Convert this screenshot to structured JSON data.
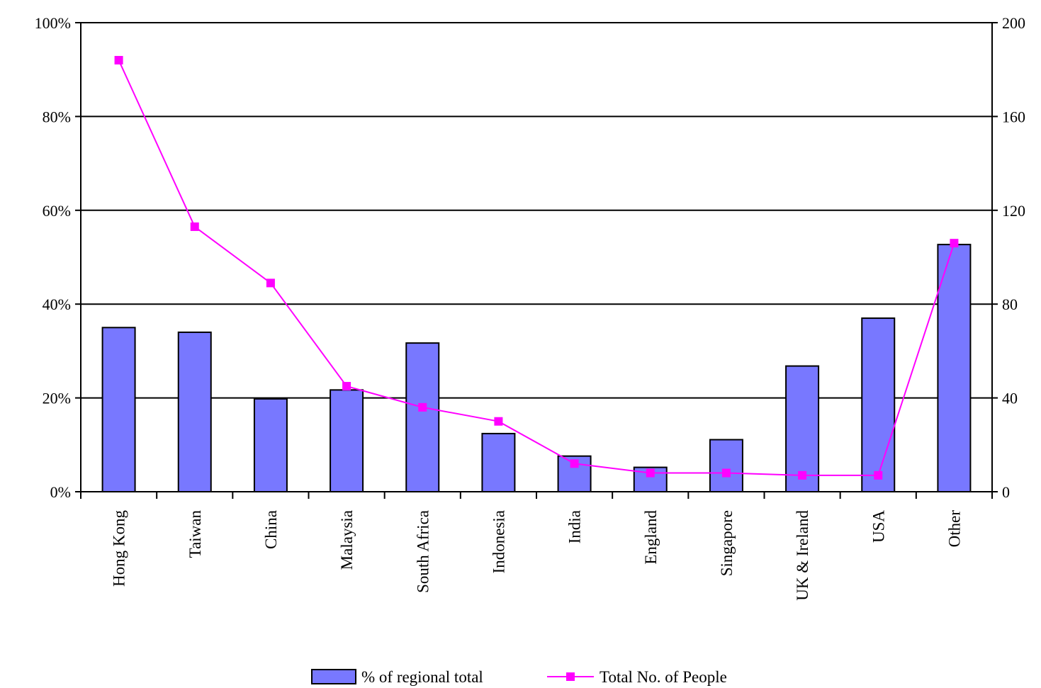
{
  "chart_data": {
    "type": "bar",
    "categories": [
      "Hong Kong",
      "Taiwan",
      "China",
      "Malaysia",
      "South Africa",
      "Indonesia",
      "India",
      "England",
      "Singapore",
      "UK & Ireland",
      "USA",
      "Other"
    ],
    "series": [
      {
        "name": "% of regional total",
        "type": "bar",
        "axis": "left",
        "color": "#7878ff",
        "values": [
          0.35,
          0.34,
          0.198,
          0.217,
          0.317,
          0.124,
          0.076,
          0.052,
          0.111,
          0.268,
          0.37,
          0.527
        ]
      },
      {
        "name": "Total No. of People",
        "type": "line",
        "axis": "right",
        "color": "#ff00ff",
        "marker": "square",
        "values": [
          184,
          113,
          89,
          45,
          36,
          30,
          12,
          8,
          8,
          7,
          7,
          106
        ]
      }
    ],
    "y_left": {
      "min": 0,
      "max": 1,
      "ticks": [
        0,
        0.2,
        0.4,
        0.6,
        0.8,
        1.0
      ],
      "tick_labels": [
        "0%",
        "20%",
        "40%",
        "60%",
        "80%",
        "100%"
      ]
    },
    "y_right": {
      "min": 0,
      "max": 200,
      "ticks": [
        0,
        40,
        80,
        120,
        160,
        200
      ],
      "tick_labels": [
        "0",
        "40",
        "80",
        "120",
        "160",
        "200"
      ]
    },
    "grid": true,
    "legend_position": "bottom"
  }
}
